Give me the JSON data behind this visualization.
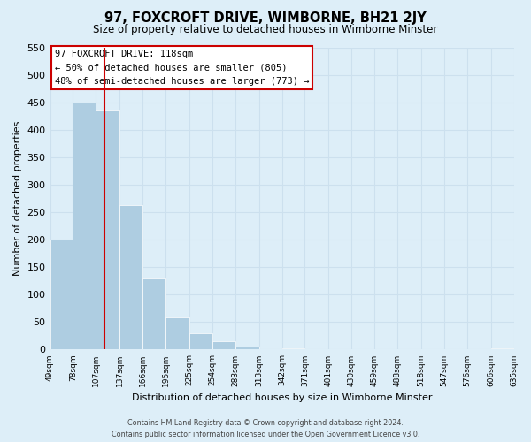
{
  "title": "97, FOXCROFT DRIVE, WIMBORNE, BH21 2JY",
  "subtitle": "Size of property relative to detached houses in Wimborne Minster",
  "xlabel": "Distribution of detached houses by size in Wimborne Minster",
  "ylabel": "Number of detached properties",
  "bar_values": [
    200,
    450,
    435,
    263,
    130,
    58,
    30,
    15,
    5,
    0,
    3,
    0,
    0,
    0,
    0,
    0,
    0,
    0,
    0,
    3
  ],
  "bar_labels": [
    "49sqm",
    "78sqm",
    "107sqm",
    "137sqm",
    "166sqm",
    "195sqm",
    "225sqm",
    "254sqm",
    "283sqm",
    "313sqm",
    "342sqm",
    "371sqm",
    "401sqm",
    "430sqm",
    "459sqm",
    "488sqm",
    "518sqm",
    "547sqm",
    "576sqm",
    "606sqm",
    "635sqm"
  ],
  "bar_color": "#aecde1",
  "highlight_line_color": "#cc0000",
  "ylim": [
    0,
    550
  ],
  "yticks": [
    0,
    50,
    100,
    150,
    200,
    250,
    300,
    350,
    400,
    450,
    500,
    550
  ],
  "annotation_title": "97 FOXCROFT DRIVE: 118sqm",
  "annotation_line1": "← 50% of detached houses are smaller (805)",
  "annotation_line2": "48% of semi-detached houses are larger (773) →",
  "annotation_box_color": "#ffffff",
  "annotation_box_edge": "#cc0000",
  "footer1": "Contains HM Land Registry data © Crown copyright and database right 2024.",
  "footer2": "Contains public sector information licensed under the Open Government Licence v3.0.",
  "grid_color": "#cce0ee",
  "background_color": "#ddeef8"
}
